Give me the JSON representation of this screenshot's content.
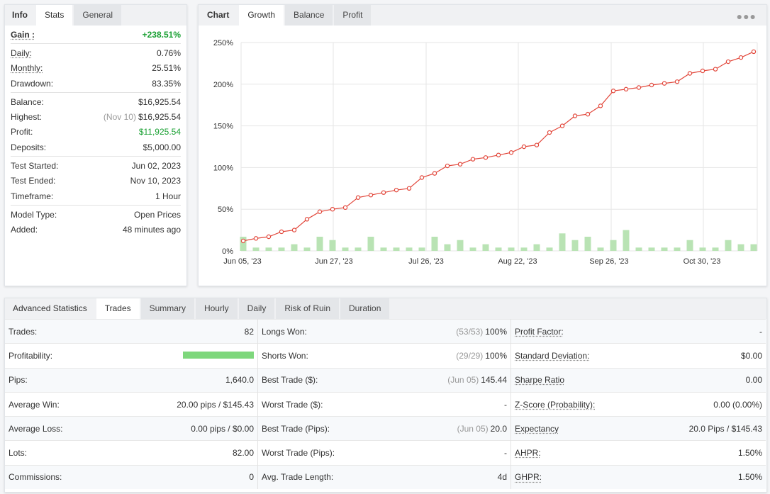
{
  "left_panel": {
    "tabs": [
      "Info",
      "Stats",
      "General"
    ],
    "gain": {
      "label": "Gain :",
      "value": "+238.51%"
    },
    "groups": [
      [
        {
          "label": "Daily:",
          "value": "0.76%",
          "underline": true
        },
        {
          "label": "Monthly:",
          "value": "25.51%",
          "underline": true
        },
        {
          "label": "Drawdown:",
          "value": "83.35%"
        }
      ],
      [
        {
          "label": "Balance:",
          "value": "$16,925.54"
        },
        {
          "label": "Highest:",
          "note": "(Nov 10)",
          "value": "$16,925.54"
        },
        {
          "label": "Profit:",
          "value": "$11,925.54",
          "green": true
        },
        {
          "label": "Deposits:",
          "value": "$5,000.00"
        }
      ],
      [
        {
          "label": "Test Started:",
          "value": "Jun 02, 2023"
        },
        {
          "label": "Test Ended:",
          "value": "Nov 10, 2023"
        },
        {
          "label": "Timeframe:",
          "value": "1 Hour"
        }
      ],
      [
        {
          "label": "Model Type:",
          "value": "Open Prices"
        },
        {
          "label": "Added:",
          "value": "48 minutes ago"
        }
      ]
    ]
  },
  "chart_panel": {
    "tabs": [
      "Chart",
      "Growth",
      "Balance",
      "Profit"
    ],
    "menu_icon": "more-dots-icon"
  },
  "chart_data": {
    "type": "line",
    "title": "",
    "x_tick_labels": [
      "Jun 05, '23",
      "Jun 27, '23",
      "Jul 26, '23",
      "Aug 22, '23",
      "Sep 26, '23",
      "Oct 30, '23"
    ],
    "y_tick_labels": [
      "0%",
      "50%",
      "100%",
      "150%",
      "200%",
      "250%"
    ],
    "ylim": [
      0,
      250
    ],
    "grid": true,
    "line_color": "#e2473b",
    "bar_color": "#b9e3b4",
    "series": [
      {
        "type": "line",
        "values": [
          12,
          15,
          17,
          23,
          25,
          38,
          47,
          50,
          52,
          64,
          67,
          70,
          73,
          75,
          88,
          93,
          102,
          104,
          110,
          112,
          115,
          118,
          125,
          127,
          142,
          150,
          162,
          164,
          174,
          192,
          194,
          196,
          199,
          201,
          203,
          213,
          216,
          218,
          227,
          232,
          239
        ]
      },
      {
        "type": "bar",
        "values": [
          17,
          4,
          4,
          4,
          8,
          4,
          17,
          13,
          4,
          4,
          17,
          4,
          4,
          4,
          4,
          17,
          8,
          13,
          4,
          8,
          4,
          4,
          4,
          8,
          4,
          21,
          13,
          17,
          4,
          13,
          25,
          4,
          4,
          4,
          4,
          13,
          4,
          4,
          13,
          8,
          8
        ]
      }
    ]
  },
  "adv_panel": {
    "title": "Advanced Statistics",
    "tabs": [
      "Trades",
      "Summary",
      "Hourly",
      "Daily",
      "Risk of Ruin",
      "Duration"
    ],
    "col1": [
      {
        "label": "Trades:",
        "value": "82"
      },
      {
        "label": "Profitability:",
        "bar": 1.0
      },
      {
        "label": "Pips:",
        "value": "1,640.0"
      },
      {
        "label": "Average Win:",
        "value": "20.00 pips / $145.43"
      },
      {
        "label": "Average Loss:",
        "value": "0.00 pips / $0.00"
      },
      {
        "label": "Lots:",
        "value": "82.00"
      },
      {
        "label": "Commissions:",
        "value": "0"
      }
    ],
    "col2": [
      {
        "label": "Longs Won:",
        "note": "(53/53)",
        "value": "100%"
      },
      {
        "label": "Shorts Won:",
        "note": "(29/29)",
        "value": "100%"
      },
      {
        "label": "Best Trade ($):",
        "note": "(Jun 05)",
        "value": "145.44"
      },
      {
        "label": "Worst Trade ($):",
        "value": "-"
      },
      {
        "label": "Best Trade (Pips):",
        "note": "(Jun 05)",
        "value": "20.0"
      },
      {
        "label": "Worst Trade (Pips):",
        "value": "-"
      },
      {
        "label": "Avg. Trade Length:",
        "value": "4d"
      }
    ],
    "col3": [
      {
        "label": "Profit Factor:",
        "value": "-"
      },
      {
        "label": "Standard Deviation:",
        "value": "$0.00"
      },
      {
        "label": "Sharpe Ratio",
        "value": "0.00"
      },
      {
        "label": "Z-Score (Probability):",
        "value": "0.00 (0.00%)"
      },
      {
        "label": "Expectancy",
        "value": "20.0 Pips / $145.43"
      },
      {
        "label": "AHPR:",
        "value": "1.50%"
      },
      {
        "label": "GHPR:",
        "value": "1.50%"
      }
    ]
  }
}
